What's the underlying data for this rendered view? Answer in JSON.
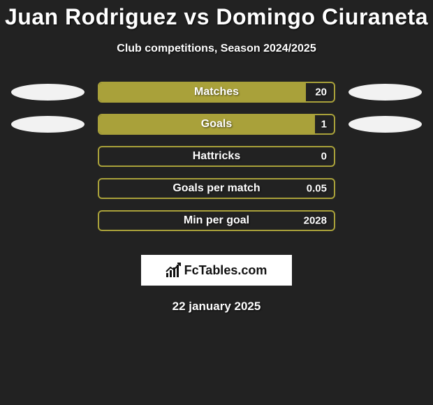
{
  "title": "Juan Rodriguez vs Domingo Ciuraneta",
  "subtitle": "Club competitions, Season 2024/2025",
  "brand": "FcTables.com",
  "date": "22 january 2025",
  "colors": {
    "background": "#222222",
    "bar_fill": "#a9a13a",
    "bar_border": "#a9a13a",
    "ellipse": "#f2f2f2",
    "text": "#ffffff",
    "brand_bg": "#ffffff",
    "brand_text": "#111111"
  },
  "bar_wrap_width": 340,
  "stats": [
    {
      "label": "Matches",
      "value": "20",
      "fill_pct": 88,
      "show_ellipses": true
    },
    {
      "label": "Goals",
      "value": "1",
      "fill_pct": 92,
      "show_ellipses": true
    },
    {
      "label": "Hattricks",
      "value": "0",
      "fill_pct": 0,
      "show_ellipses": false
    },
    {
      "label": "Goals per match",
      "value": "0.05",
      "fill_pct": 0,
      "show_ellipses": false
    },
    {
      "label": "Min per goal",
      "value": "2028",
      "fill_pct": 0,
      "show_ellipses": false
    }
  ]
}
